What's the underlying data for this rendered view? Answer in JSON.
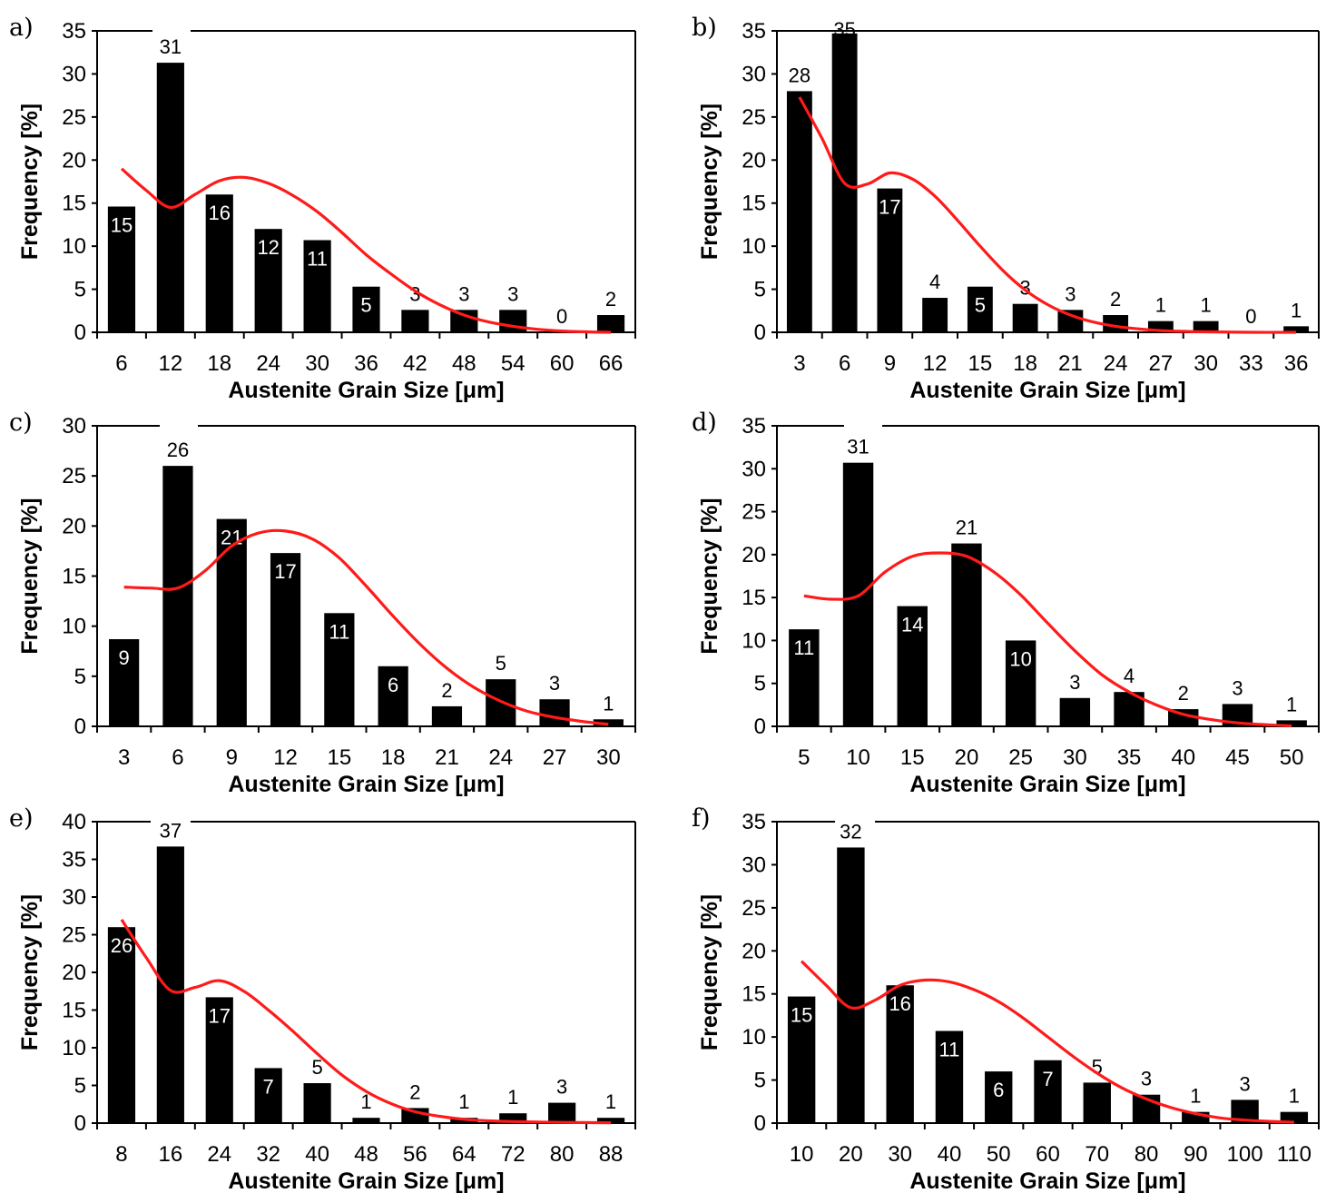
{
  "chart_data": [
    {
      "panel": "a)",
      "type": "bar",
      "xlabel": "Austenite Grain Size [μm]",
      "ylabel": "Frequency [%]",
      "ylim": [
        0,
        35
      ],
      "yticks": [
        0,
        5,
        10,
        15,
        20,
        25,
        30,
        35
      ],
      "categories": [
        "6",
        "12",
        "18",
        "24",
        "30",
        "36",
        "42",
        "48",
        "54",
        "60",
        "66"
      ],
      "values": [
        14.6,
        31.3,
        16.0,
        12.0,
        10.7,
        5.3,
        2.6,
        2.6,
        2.6,
        0,
        2.0
      ],
      "labels": [
        "15",
        "31",
        "16",
        "12",
        "11",
        "5",
        "3",
        "3",
        "3",
        "0",
        "2"
      ],
      "fit_curve": [
        [
          6,
          19
        ],
        [
          9,
          16.5
        ],
        [
          12,
          14.5
        ],
        [
          15,
          16
        ],
        [
          18,
          17.6
        ],
        [
          21,
          18
        ],
        [
          24,
          17.3
        ],
        [
          27,
          15.9
        ],
        [
          30,
          14
        ],
        [
          33,
          11.6
        ],
        [
          36,
          9
        ],
        [
          39,
          6.8
        ],
        [
          42,
          4.8
        ],
        [
          45,
          3.2
        ],
        [
          48,
          2
        ],
        [
          51,
          1.2
        ],
        [
          54,
          0.7
        ],
        [
          57,
          0.35
        ],
        [
          60,
          0.15
        ],
        [
          63,
          0.05
        ],
        [
          66,
          0
        ]
      ],
      "grid": false,
      "colors": {
        "bars": "#000000",
        "curve": "#ff1a1a"
      }
    },
    {
      "panel": "b)",
      "type": "bar",
      "xlabel": "Austenite Grain Size [μm]",
      "ylabel": "Frequency [%]",
      "ylim": [
        0,
        35
      ],
      "yticks": [
        0,
        5,
        10,
        15,
        20,
        25,
        30,
        35
      ],
      "categories": [
        "3",
        "6",
        "9",
        "12",
        "15",
        "18",
        "21",
        "24",
        "27",
        "30",
        "33",
        "36"
      ],
      "values": [
        28,
        34.7,
        16.7,
        4.0,
        5.3,
        3.3,
        2.6,
        2.0,
        1.3,
        1.3,
        0,
        0.7
      ],
      "labels": [
        "28",
        "35",
        "17",
        "4",
        "5",
        "3",
        "3",
        "2",
        "1",
        "1",
        "0",
        "1"
      ],
      "fit_curve": [
        [
          3,
          27.3
        ],
        [
          4.5,
          22.5
        ],
        [
          6,
          17.3
        ],
        [
          7.5,
          17.2
        ],
        [
          9,
          18.5
        ],
        [
          10.5,
          17.8
        ],
        [
          12,
          15.8
        ],
        [
          13.5,
          13
        ],
        [
          15,
          10
        ],
        [
          16.5,
          7.2
        ],
        [
          18,
          4.9
        ],
        [
          19.5,
          3.2
        ],
        [
          21,
          2
        ],
        [
          22.5,
          1.2
        ],
        [
          24,
          0.7
        ],
        [
          25.5,
          0.4
        ],
        [
          27,
          0.2
        ],
        [
          30,
          0.05
        ],
        [
          33,
          0
        ],
        [
          36,
          0
        ]
      ],
      "grid": false,
      "colors": {
        "bars": "#000000",
        "curve": "#ff1a1a"
      }
    },
    {
      "panel": "c)",
      "type": "bar",
      "xlabel": "Austenite Grain Size [μm]",
      "ylabel": "Frequency [%]",
      "ylim": [
        0,
        30
      ],
      "yticks": [
        0,
        5,
        10,
        15,
        20,
        25,
        30
      ],
      "categories": [
        "3",
        "6",
        "9",
        "12",
        "15",
        "18",
        "21",
        "24",
        "27",
        "30"
      ],
      "values": [
        8.7,
        26.0,
        20.7,
        17.3,
        11.3,
        6.0,
        2.0,
        4.7,
        2.7,
        0.7
      ],
      "labels": [
        "9",
        "26",
        "21",
        "17",
        "11",
        "6",
        "2",
        "5",
        "3",
        "1"
      ],
      "fit_curve": [
        [
          3,
          13.9
        ],
        [
          4.5,
          13.8
        ],
        [
          6,
          13.8
        ],
        [
          7.5,
          15.5
        ],
        [
          9,
          18
        ],
        [
          10.5,
          19.3
        ],
        [
          12,
          19.5
        ],
        [
          13.5,
          18.7
        ],
        [
          15,
          16.8
        ],
        [
          16.5,
          14
        ],
        [
          18,
          11
        ],
        [
          19.5,
          8.2
        ],
        [
          21,
          5.8
        ],
        [
          22.5,
          3.9
        ],
        [
          24,
          2.5
        ],
        [
          25.5,
          1.5
        ],
        [
          27,
          0.9
        ],
        [
          28.5,
          0.5
        ],
        [
          30,
          0.2
        ]
      ],
      "grid": false,
      "colors": {
        "bars": "#000000",
        "curve": "#ff1a1a"
      }
    },
    {
      "panel": "d)",
      "type": "bar",
      "xlabel": "Austenite Grain Size [μm]",
      "ylabel": "Frequency [%]",
      "ylim": [
        0,
        35
      ],
      "yticks": [
        0,
        5,
        10,
        15,
        20,
        25,
        30,
        35
      ],
      "categories": [
        "5",
        "10",
        "15",
        "20",
        "25",
        "30",
        "35",
        "40",
        "45",
        "50"
      ],
      "values": [
        11.3,
        30.7,
        14.0,
        21.3,
        10.0,
        3.3,
        4.0,
        2.0,
        2.6,
        0.7
      ],
      "labels": [
        "11",
        "31",
        "14",
        "21",
        "10",
        "3",
        "4",
        "2",
        "3",
        "1"
      ],
      "fit_curve": [
        [
          5,
          15.2
        ],
        [
          7.5,
          14.8
        ],
        [
          10,
          15.2
        ],
        [
          12.5,
          18
        ],
        [
          15,
          19.8
        ],
        [
          17.5,
          20.2
        ],
        [
          20,
          19.8
        ],
        [
          22.5,
          18
        ],
        [
          25,
          15.3
        ],
        [
          27.5,
          12
        ],
        [
          30,
          8.8
        ],
        [
          32.5,
          6
        ],
        [
          35,
          4
        ],
        [
          37.5,
          2.5
        ],
        [
          40,
          1.4
        ],
        [
          42.5,
          0.8
        ],
        [
          45,
          0.4
        ],
        [
          47.5,
          0.2
        ],
        [
          50,
          0.05
        ]
      ],
      "grid": false,
      "colors": {
        "bars": "#000000",
        "curve": "#ff1a1a"
      }
    },
    {
      "panel": "e)",
      "type": "bar",
      "xlabel": "Austenite Grain Size [μm]",
      "ylabel": "Frequency [%]",
      "ylim": [
        0,
        40
      ],
      "yticks": [
        0,
        5,
        10,
        15,
        20,
        25,
        30,
        35,
        40
      ],
      "categories": [
        "8",
        "16",
        "24",
        "32",
        "40",
        "48",
        "56",
        "64",
        "72",
        "80",
        "88"
      ],
      "values": [
        26,
        36.7,
        16.7,
        7.3,
        5.3,
        0.7,
        2.0,
        0.7,
        1.3,
        2.7,
        0.7
      ],
      "labels": [
        "26",
        "37",
        "17",
        "7",
        "5",
        "1",
        "2",
        "1",
        "1",
        "3",
        "1"
      ],
      "fit_curve": [
        [
          8,
          27
        ],
        [
          12,
          22
        ],
        [
          16,
          17.6
        ],
        [
          20,
          18
        ],
        [
          24,
          18.9
        ],
        [
          28,
          17.5
        ],
        [
          32,
          15
        ],
        [
          36,
          12.2
        ],
        [
          40,
          9.2
        ],
        [
          44,
          6.4
        ],
        [
          48,
          4.2
        ],
        [
          52,
          2.6
        ],
        [
          56,
          1.5
        ],
        [
          60,
          0.9
        ],
        [
          64,
          0.5
        ],
        [
          68,
          0.3
        ],
        [
          72,
          0.2
        ],
        [
          80,
          0.1
        ],
        [
          88,
          0.05
        ]
      ],
      "grid": false,
      "colors": {
        "bars": "#000000",
        "curve": "#ff1a1a"
      }
    },
    {
      "panel": "f)",
      "type": "bar",
      "xlabel": "Austenite Grain Size [μm]",
      "ylabel": "Frequency [%]",
      "ylim": [
        0,
        35
      ],
      "yticks": [
        0,
        5,
        10,
        15,
        20,
        25,
        30,
        35
      ],
      "categories": [
        "10",
        "20",
        "30",
        "40",
        "50",
        "60",
        "70",
        "80",
        "90",
        "100",
        "110"
      ],
      "values": [
        14.7,
        32.0,
        16.0,
        10.7,
        6.0,
        7.3,
        4.7,
        3.3,
        1.3,
        2.7,
        1.3
      ],
      "labels": [
        "15",
        "32",
        "16",
        "11",
        "6",
        "7",
        "5",
        "3",
        "1",
        "3",
        "1"
      ],
      "fit_curve": [
        [
          10,
          18.8
        ],
        [
          15,
          16
        ],
        [
          20,
          13.4
        ],
        [
          25,
          14.3
        ],
        [
          30,
          16
        ],
        [
          35,
          16.6
        ],
        [
          40,
          16.4
        ],
        [
          45,
          15.5
        ],
        [
          50,
          14.1
        ],
        [
          55,
          12.2
        ],
        [
          60,
          10
        ],
        [
          65,
          7.8
        ],
        [
          70,
          5.8
        ],
        [
          75,
          4.1
        ],
        [
          80,
          2.8
        ],
        [
          85,
          1.8
        ],
        [
          90,
          1.1
        ],
        [
          95,
          0.6
        ],
        [
          100,
          0.35
        ],
        [
          105,
          0.2
        ],
        [
          110,
          0.1
        ]
      ],
      "grid": false,
      "colors": {
        "bars": "#000000",
        "curve": "#ff1a1a"
      }
    }
  ]
}
